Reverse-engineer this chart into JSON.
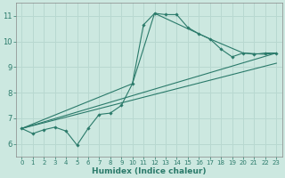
{
  "xlabel": "Humidex (Indice chaleur)",
  "bg_color": "#cce8e0",
  "grid_color": "#b8d8d0",
  "line_color": "#2a7a6a",
  "xlim": [
    -0.5,
    23.5
  ],
  "ylim": [
    5.5,
    11.5
  ],
  "xticks": [
    0,
    1,
    2,
    3,
    4,
    5,
    6,
    7,
    8,
    9,
    10,
    11,
    12,
    13,
    14,
    15,
    16,
    17,
    18,
    19,
    20,
    21,
    22,
    23
  ],
  "yticks": [
    6,
    7,
    8,
    9,
    10,
    11
  ],
  "line_main": {
    "x": [
      0,
      1,
      2,
      3,
      4,
      5,
      6,
      7,
      8,
      9,
      10,
      11,
      12,
      13,
      14,
      15,
      16,
      17,
      18,
      19,
      20,
      21,
      22,
      23
    ],
    "y": [
      6.6,
      6.4,
      6.55,
      6.65,
      6.5,
      5.95,
      6.6,
      7.15,
      7.2,
      7.5,
      8.35,
      10.65,
      11.1,
      11.05,
      11.05,
      10.55,
      10.3,
      10.1,
      9.7,
      9.4,
      9.55,
      9.5,
      9.55,
      9.55
    ]
  },
  "line_smooth1": {
    "x": [
      0,
      10,
      12,
      17,
      20,
      22,
      23
    ],
    "y": [
      6.6,
      8.35,
      11.1,
      10.1,
      9.55,
      9.5,
      9.55
    ]
  },
  "line_smooth2": {
    "x": [
      0,
      23
    ],
    "y": [
      6.6,
      9.55
    ]
  },
  "line_smooth3": {
    "x": [
      0,
      23
    ],
    "y": [
      6.6,
      9.15
    ]
  }
}
